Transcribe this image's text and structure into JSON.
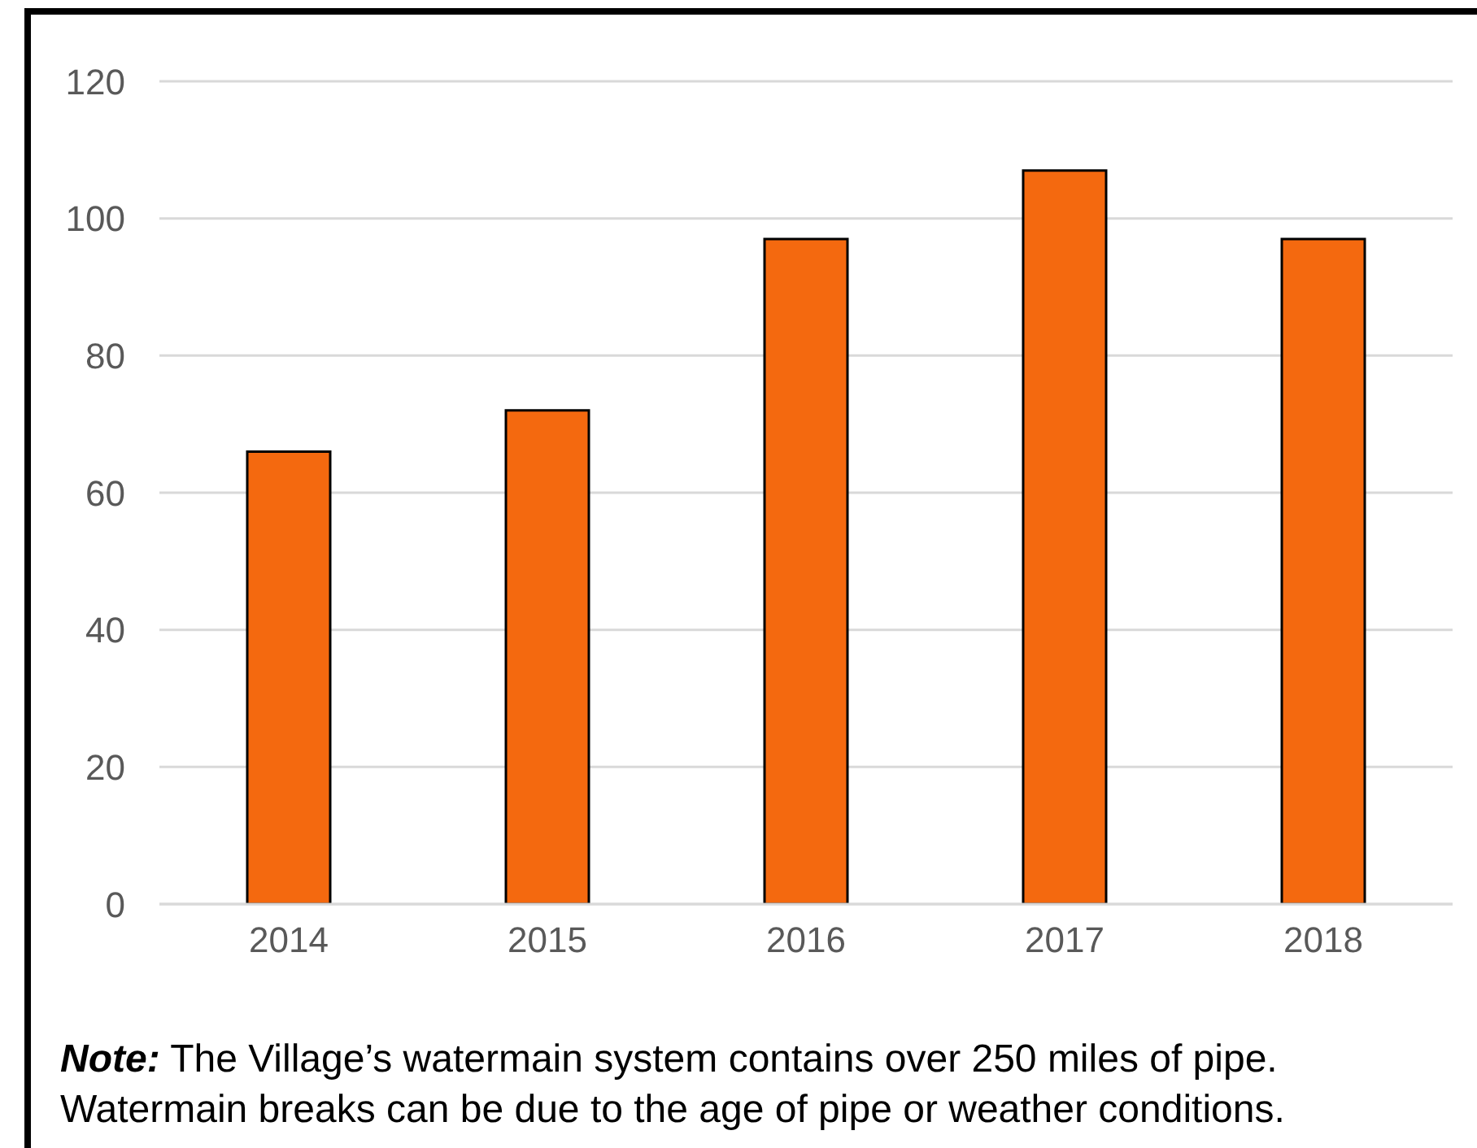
{
  "chart_data": {
    "type": "bar",
    "categories": [
      "2014",
      "2015",
      "2016",
      "2017",
      "2018"
    ],
    "values": [
      66,
      72,
      97,
      107,
      97
    ],
    "color": "#f4690f",
    "ylim": [
      0,
      120
    ],
    "yticks": [
      0,
      20,
      40,
      60,
      80,
      100,
      120
    ],
    "grid": "y",
    "annotations": [
      "Note: The Village’s watermain system contains over 250 miles of pipe. Watermain breaks can be due to the age of pipe or weather conditions."
    ]
  }
}
